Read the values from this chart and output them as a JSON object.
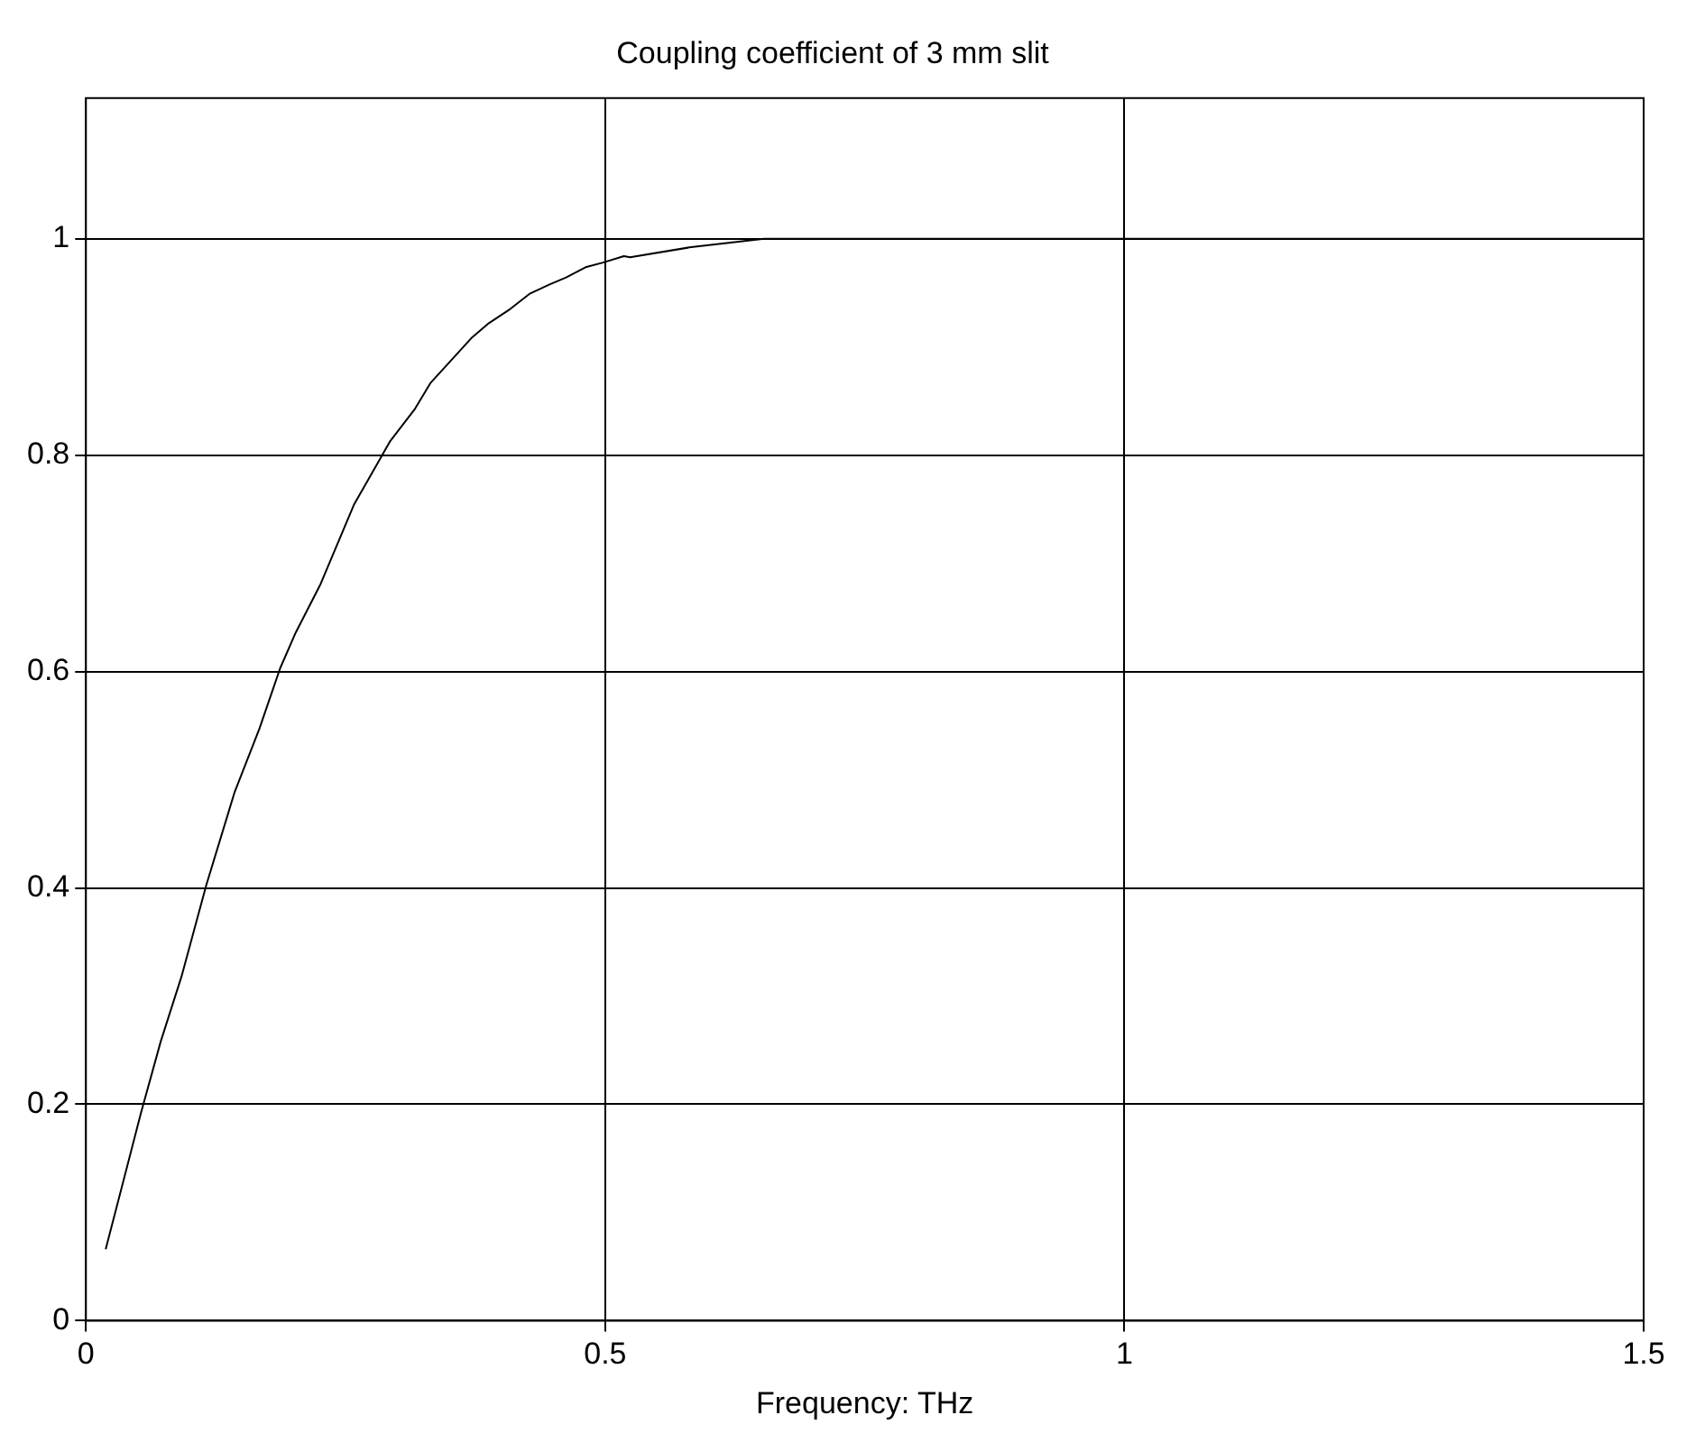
{
  "chart_data": {
    "type": "line",
    "title": "Coupling coefficient of 3 mm slit",
    "xlabel": "Frequency: THz",
    "x": [
      0.019,
      0.036,
      0.053,
      0.072,
      0.092,
      0.116,
      0.143,
      0.167,
      0.187,
      0.202,
      0.226,
      0.258,
      0.293,
      0.317,
      0.332,
      0.352,
      0.372,
      0.388,
      0.407,
      0.427,
      0.447,
      0.462,
      0.482,
      0.498,
      0.518,
      0.524,
      0.581,
      0.617,
      0.653,
      1.5
    ],
    "series": [
      {
        "color": "#000000",
        "values": [
          0.066,
          0.129,
          0.192,
          0.258,
          0.318,
          0.403,
          0.488,
          0.547,
          0.603,
          0.636,
          0.681,
          0.754,
          0.813,
          0.843,
          0.867,
          0.888,
          0.909,
          0.922,
          0.934,
          0.949,
          0.958,
          0.964,
          0.974,
          0.978,
          0.984,
          0.983,
          0.992,
          0.996,
          1.0,
          1.0
        ]
      }
    ],
    "xlim": [
      0,
      1.5
    ],
    "xticks": [
      0,
      0.5,
      1,
      1.5
    ],
    "ylim": [
      0,
      1.13
    ],
    "yticks": [
      0,
      0.2,
      0.4,
      0.6,
      0.8,
      1
    ],
    "grid": true,
    "line_style": "solid",
    "marker": "none",
    "legend": false
  }
}
